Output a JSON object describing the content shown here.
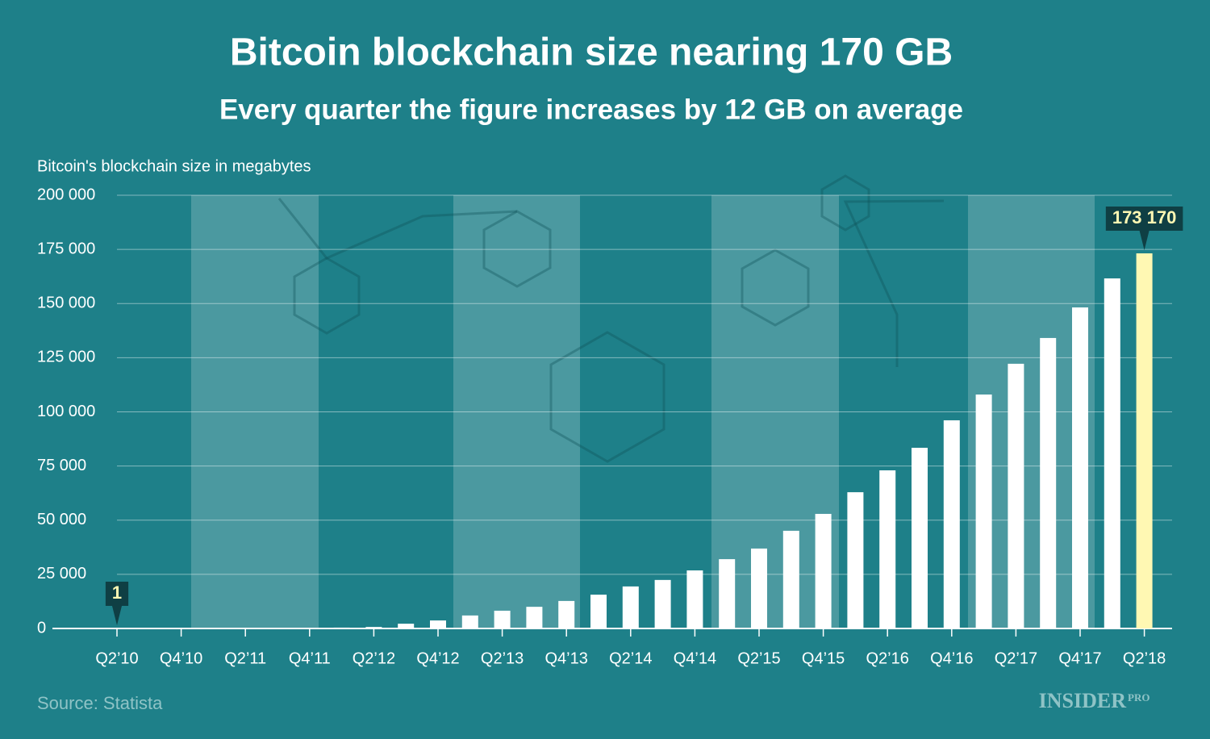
{
  "chart_data": {
    "type": "bar",
    "title": "Bitcoin blockchain size nearing 170 GB",
    "subtitle": "Every quarter the figure increases by 12 GB on average",
    "y_axis_label": "Bitcoin's blockchain size in megabytes",
    "source": "Source: Statista",
    "brand": "INSIDER",
    "brand_suffix": "PRO",
    "categories": [
      "Q2’10",
      null,
      "Q4’10",
      null,
      "Q2’11",
      null,
      "Q4’11",
      null,
      "Q2’12",
      null,
      "Q4’12",
      null,
      "Q2’13",
      null,
      "Q4’13",
      null,
      "Q2’14",
      null,
      "Q4’14",
      null,
      "Q2’15",
      null,
      "Q4’15",
      null,
      "Q2’16",
      null,
      "Q4’16",
      null,
      "Q2’17",
      null,
      "Q4’17",
      null,
      "Q2’18"
    ],
    "values": [
      1,
      5,
      20,
      50,
      100,
      150,
      250,
      400,
      700,
      2200,
      3700,
      6000,
      8200,
      10000,
      12700,
      15600,
      19400,
      22400,
      26800,
      32000,
      36900,
      45100,
      52900,
      62900,
      73000,
      83400,
      96100,
      108000,
      122200,
      134100,
      148200,
      161600,
      173170
    ],
    "value_labels": [
      "1",
      null,
      null,
      null,
      null,
      null,
      null,
      null,
      null,
      null,
      null,
      null,
      null,
      null,
      null,
      null,
      null,
      null,
      null,
      null,
      null,
      null,
      null,
      null,
      null,
      null,
      null,
      null,
      null,
      null,
      null,
      null,
      "173 170"
    ],
    "colors": [
      "#ffffff",
      "#ffffff",
      "#ffffff",
      "#ffffff",
      "#ffffff",
      "#ffffff",
      "#ffffff",
      "#ffffff",
      "#ffffff",
      "#ffffff",
      "#ffffff",
      "#ffffff",
      "#ffffff",
      "#ffffff",
      "#ffffff",
      "#ffffff",
      "#ffffff",
      "#ffffff",
      "#ffffff",
      "#ffffff",
      "#ffffff",
      "#ffffff",
      "#ffffff",
      "#ffffff",
      "#ffffff",
      "#ffffff",
      "#ffffff",
      "#ffffff",
      "#ffffff",
      "#ffffff",
      "#ffffff",
      "#ffffff",
      "#fff8b3"
    ],
    "ylim": [
      0,
      200000
    ],
    "yticks": [
      0,
      {
        "value": 25000,
        "label": "25 000"
      },
      {
        "value": 50000,
        "label": "50 000"
      },
      {
        "value": 75000,
        "label": "75 000"
      },
      {
        "value": 100000,
        "label": "100 000"
      },
      {
        "value": 125000,
        "label": "125 000"
      },
      {
        "value": 150000,
        "label": "150 000"
      },
      {
        "value": 175000,
        "label": "175 000"
      },
      {
        "value": 200000,
        "label": "200 000"
      }
    ],
    "grid": true
  }
}
